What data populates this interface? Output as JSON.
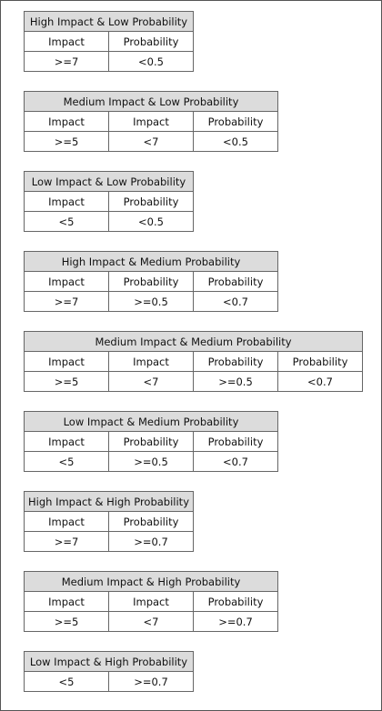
{
  "tables": [
    {
      "title": "High Impact & Low Probability",
      "headers": [
        "Impact",
        "Probability"
      ],
      "values": [
        ">=7",
        "<0.5"
      ]
    },
    {
      "title": "Medium Impact & Low Probability",
      "headers": [
        "Impact",
        "Impact",
        "Probability"
      ],
      "values": [
        ">=5",
        "<7",
        "<0.5"
      ]
    },
    {
      "title": "Low Impact & Low Probability",
      "headers": [
        "Impact",
        "Probability"
      ],
      "values": [
        "<5",
        "<0.5"
      ]
    },
    {
      "title": "High Impact & Medium Probability",
      "headers": [
        "Impact",
        "Probability",
        "Probability"
      ],
      "values": [
        ">=7",
        ">=0.5",
        "<0.7"
      ]
    },
    {
      "title": "Medium Impact & Medium Probability",
      "headers": [
        "Impact",
        "Impact",
        "Probability",
        "Probability"
      ],
      "values": [
        ">=5",
        "<7",
        ">=0.5",
        "<0.7"
      ]
    },
    {
      "title": "Low Impact & Medium Probability",
      "headers": [
        "Impact",
        "Probability",
        "Probability"
      ],
      "values": [
        "<5",
        ">=0.5",
        "<0.7"
      ]
    },
    {
      "title": "High Impact & High Probability",
      "headers": [
        "Impact",
        "Probability"
      ],
      "values": [
        ">=7",
        ">=0.7"
      ]
    },
    {
      "title": "Medium Impact & High Probability",
      "headers": [
        "Impact",
        "Impact",
        "Probability"
      ],
      "values": [
        ">=5",
        "<7",
        ">=0.7"
      ]
    },
    {
      "title": "Low Impact & High Probability",
      "values": [
        "<5",
        ">=0.7"
      ]
    }
  ]
}
